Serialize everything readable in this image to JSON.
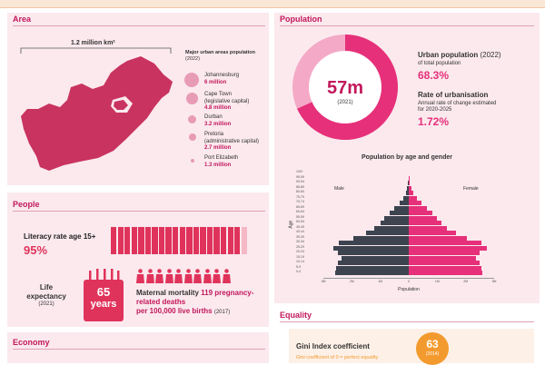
{
  "area": {
    "title": "Area",
    "size": "1.2 million km²",
    "urban_header": "Major urban areas population",
    "urban_year": "(2022)",
    "cities": [
      {
        "name": "Johannesburg",
        "pop": "6 million"
      },
      {
        "name": "Cape Town",
        "note": "(legislative capital)",
        "pop": "4.8 million"
      },
      {
        "name": "Durban",
        "pop": "3.2 million"
      },
      {
        "name": "Pretoria",
        "note": "(administrative capital)",
        "pop": "2.7 million"
      },
      {
        "name": "Port Elizabeth",
        "pop": "1.3 million"
      }
    ]
  },
  "population": {
    "title": "Population",
    "total": "57m",
    "total_year": "(2021)",
    "urban_label": "Urban population",
    "urban_year": "(2022)",
    "urban_sub": "of total population",
    "urban_value": "68.3%",
    "urban_fraction": 0.683,
    "rate_label": "Rate of urbanisation",
    "rate_sub_1": "Annual rate of change estimated",
    "rate_sub_2": "for 2020-2025",
    "rate_value": "1.72%"
  },
  "pyramid": {
    "title": "Population by age and gender",
    "male_label": "Male",
    "female_label": "Female",
    "y_axis_label": "Age",
    "x_axis_label": "Population",
    "x_ticks": [
      "3M",
      "2M",
      "1M",
      "0",
      "1M",
      "2M",
      "3M"
    ],
    "age_groups": [
      "100+",
      "95-99",
      "90-94",
      "85-89",
      "80-84",
      "75-79",
      "70-74",
      "65-69",
      "60-64",
      "55-59",
      "50-54",
      "45-49",
      "40-44",
      "35-39",
      "30-34",
      "25-29",
      "20-24",
      "15-19",
      "10-14",
      "5-9",
      "0-4"
    ],
    "male": [
      0.0,
      0.01,
      0.02,
      0.05,
      0.1,
      0.2,
      0.33,
      0.5,
      0.67,
      0.85,
      1.0,
      1.2,
      1.5,
      1.95,
      2.45,
      2.65,
      2.5,
      2.35,
      2.5,
      2.55,
      2.6
    ],
    "female": [
      0.0,
      0.01,
      0.04,
      0.08,
      0.15,
      0.28,
      0.45,
      0.65,
      0.82,
      0.98,
      1.15,
      1.35,
      1.65,
      2.05,
      2.55,
      2.75,
      2.5,
      2.35,
      2.5,
      2.55,
      2.6
    ],
    "max": 3,
    "male_color": "#3d4450",
    "female_color": "#e6307a"
  },
  "people": {
    "title": "People",
    "literacy_label": "Literacy rate age 15+",
    "literacy_value": "95%",
    "literacy_fraction": 0.95,
    "life_label_1": "Life",
    "life_label_2": "expectancy",
    "life_year": "(2021)",
    "life_value": "65",
    "life_unit": "years",
    "maternal_label": "Maternal mortality",
    "maternal_value": "119",
    "maternal_rest_1": "pregnancy-related deaths",
    "maternal_rest_2": "per 100,000 live births",
    "maternal_year": "(2017)"
  },
  "economy": {
    "title": "Economy"
  },
  "equality": {
    "title": "Equality",
    "gini_label": "Gini Index coefficient",
    "gini_sub": "Gini coefficient of 0 = perfect equality",
    "gini_value": "63",
    "gini_year": "(2014)"
  },
  "colors": {
    "accent": "#c2185b",
    "map": "#c9335f",
    "bar": "#e0335b",
    "orange": "#f39a2e"
  }
}
